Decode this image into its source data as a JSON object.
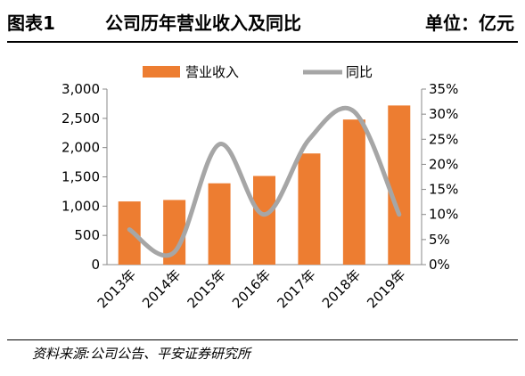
{
  "header": {
    "figure_label": "图表1",
    "title": "公司历年营业收入及同比",
    "unit": "单位：亿元"
  },
  "source": "资料来源:公司公告、平安证券研究所",
  "colors": {
    "bar": "#ED7D31",
    "line": "#A6A6A6"
  },
  "chart_data": {
    "type": "bar",
    "categories": [
      "2013年",
      "2014年",
      "2015年",
      "2016年",
      "2017年",
      "2018年",
      "2019年"
    ],
    "series": [
      {
        "name": "营业收入",
        "type": "bar",
        "axis": "left",
        "values": [
          1080,
          1105,
          1390,
          1515,
          1900,
          2480,
          2720
        ]
      },
      {
        "name": "同比",
        "type": "line",
        "axis": "right",
        "smooth": true,
        "values": [
          7,
          2.5,
          24,
          10,
          25,
          30.5,
          10
        ]
      }
    ],
    "y_left": {
      "min": 0,
      "max": 3000,
      "ticks": [
        "0",
        "500",
        "1,000",
        "1,500",
        "2,000",
        "2,500",
        "3,000"
      ]
    },
    "y_right": {
      "min": 0,
      "max": 35,
      "ticks": [
        "0%",
        "5%",
        "10%",
        "15%",
        "20%",
        "25%",
        "30%",
        "35%"
      ]
    },
    "legend": "top",
    "grid": false
  }
}
